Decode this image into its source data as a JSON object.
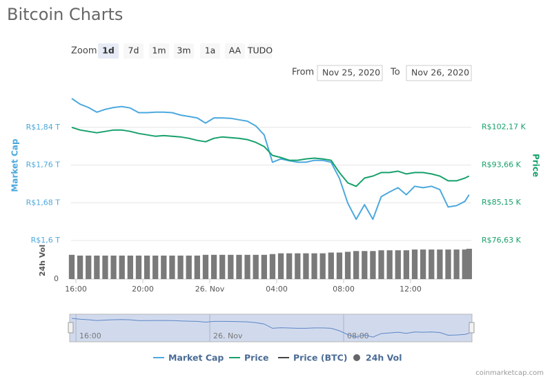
{
  "title": "Bitcoin Charts",
  "controls": {
    "zoom_label": "Zoom",
    "ranges": [
      "1d",
      "7d",
      "1m",
      "3m",
      "1a",
      "AA",
      "TUDO"
    ],
    "selected": 0,
    "from_label": "From",
    "from": "Nov 25, 2020",
    "to_label": "To",
    "to": "Nov 26, 2020"
  },
  "credit": "coinmarketcap.com",
  "chart_data": {
    "type": "line",
    "ylabel": "Market Cap",
    "y2label": "Price",
    "x": [
      15.75,
      16.25,
      16.75,
      17.25,
      17.75,
      18.25,
      18.75,
      19.25,
      19.75,
      20.25,
      20.75,
      21.25,
      21.75,
      22.25,
      22.75,
      23.25,
      23.75,
      24.25,
      24.75,
      25.25,
      25.75,
      26.25,
      26.75,
      27.25,
      27.75,
      28.25,
      28.75,
      29.25,
      29.75,
      30.25,
      30.75,
      31.25,
      31.75,
      32.25,
      32.75,
      33.25,
      33.75,
      34.25,
      34.75,
      35.25,
      35.75,
      36.25,
      36.75,
      37.25,
      37.75,
      38.25,
      38.75,
      39.25,
      39.5
    ],
    "xlim": [
      15.71,
      39.63
    ],
    "xticks": [
      {
        "value": 16,
        "label": "16:00"
      },
      {
        "value": 20,
        "label": "20:00"
      },
      {
        "value": 24,
        "label": "26. Nov"
      },
      {
        "value": 28,
        "label": "04:00"
      },
      {
        "value": 32,
        "label": "08:00"
      },
      {
        "value": 36,
        "label": "12:00"
      }
    ],
    "ylim": [
      1.6,
      1.92
    ],
    "yticks": [
      {
        "value": 1.84,
        "label": "R$1,84 T"
      },
      {
        "value": 1.76,
        "label": "R$1,76 T"
      },
      {
        "value": 1.68,
        "label": "R$1,68 T"
      },
      {
        "value": 1.6,
        "label": "R$1,6 T"
      }
    ],
    "y2lim": [
      76.63,
      110.67
    ],
    "y2ticks": [
      {
        "value": 102.17,
        "label": "R$102,17 K"
      },
      {
        "value": 93.66,
        "label": "R$93,66 K"
      },
      {
        "value": 85.15,
        "label": "R$85,15 K"
      },
      {
        "value": 76.63,
        "label": "R$76,63 K"
      }
    ],
    "grid": true,
    "series": [
      {
        "name": "Market Cap",
        "color": "#4ba8dd",
        "axis": "y",
        "values": [
          1.901,
          1.889,
          1.882,
          1.872,
          1.878,
          1.882,
          1.884,
          1.881,
          1.871,
          1.871,
          1.872,
          1.872,
          1.871,
          1.866,
          1.863,
          1.86,
          1.849,
          1.86,
          1.86,
          1.859,
          1.856,
          1.853,
          1.843,
          1.824,
          1.766,
          1.773,
          1.769,
          1.766,
          1.766,
          1.77,
          1.77,
          1.766,
          1.732,
          1.679,
          1.645,
          1.676,
          1.645,
          1.693,
          1.703,
          1.712,
          1.697,
          1.715,
          1.712,
          1.715,
          1.708,
          1.671,
          1.674,
          1.683,
          1.697
        ]
      },
      {
        "name": "Price",
        "color": "#16a06a",
        "axis": "y2",
        "values": [
          102.16,
          101.54,
          101.23,
          100.92,
          101.23,
          101.54,
          101.54,
          101.23,
          100.77,
          100.46,
          100.15,
          100.3,
          100.15,
          99.99,
          99.68,
          99.22,
          98.91,
          99.68,
          99.99,
          99.84,
          99.68,
          99.38,
          98.76,
          97.83,
          95.82,
          95.35,
          94.73,
          94.73,
          95.04,
          95.2,
          95.04,
          94.73,
          91.95,
          89.63,
          88.85,
          90.71,
          91.17,
          91.95,
          91.95,
          92.26,
          91.64,
          91.95,
          91.95,
          91.64,
          91.17,
          90.09,
          90.09,
          90.71,
          91.17
        ]
      },
      {
        "name": "Price (BTC)",
        "color": "#434348",
        "visible": false
      }
    ],
    "volume": {
      "name": "24h Vol",
      "color": "#7a7a7a",
      "ylim": [
        0,
        50
      ],
      "yticks": [
        0
      ],
      "values": [
        32,
        31,
        31,
        31,
        31,
        31,
        31,
        31,
        31,
        31,
        31,
        31,
        31,
        31,
        31,
        31,
        32,
        32,
        32,
        32,
        32,
        32,
        32,
        32,
        33,
        34,
        34,
        34,
        34,
        34,
        34,
        35,
        35,
        36,
        37,
        37,
        37,
        38,
        38,
        38,
        38,
        39,
        39,
        39,
        39,
        39,
        39,
        39,
        40
      ]
    },
    "navigator": {
      "xticks": [
        {
          "value": 16,
          "label": "16:00"
        },
        {
          "value": 24,
          "label": "26. Nov"
        },
        {
          "value": 32,
          "label": "08:00"
        }
      ]
    }
  }
}
